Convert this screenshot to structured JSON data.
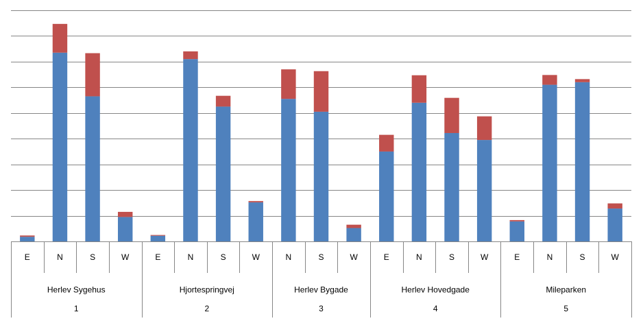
{
  "chart_data": {
    "type": "bar",
    "stacked": true,
    "grid": true,
    "legend": "none",
    "title": "",
    "xlabel": "",
    "ylabel": "",
    "ylim": [
      0,
      9
    ],
    "colors": [
      "#4f81bd",
      "#c0504d"
    ],
    "groups": [
      {
        "level1": "1",
        "level2": "Herlev Sygehus",
        "categories": [
          "E",
          "N",
          "S",
          "W"
        ]
      },
      {
        "level1": "2",
        "level2": "Hjortespringvej",
        "categories": [
          "E",
          "N",
          "S",
          "W"
        ]
      },
      {
        "level1": "3",
        "level2": "Herlev Bygade",
        "categories": [
          "N",
          "S",
          "W"
        ]
      },
      {
        "level1": "4",
        "level2": "Herlev Hovedgade",
        "categories": [
          "E",
          "N",
          "S",
          "W"
        ]
      },
      {
        "level1": "5",
        "level2": "Mileparken",
        "categories": [
          "E",
          "N",
          "S",
          "W"
        ]
      }
    ],
    "series": [
      {
        "values": [
          0.18,
          7.35,
          5.65,
          0.95,
          0.22,
          7.1,
          5.25,
          1.52,
          5.55,
          5.05,
          0.52,
          3.5,
          5.4,
          4.22,
          3.95,
          0.78,
          6.1,
          6.2,
          1.28
        ]
      },
      {
        "values": [
          0.05,
          1.12,
          1.68,
          0.2,
          0.03,
          0.3,
          0.42,
          0.05,
          1.15,
          1.58,
          0.13,
          0.65,
          1.07,
          1.37,
          0.92,
          0.05,
          0.38,
          0.12,
          0.2
        ]
      }
    ]
  }
}
